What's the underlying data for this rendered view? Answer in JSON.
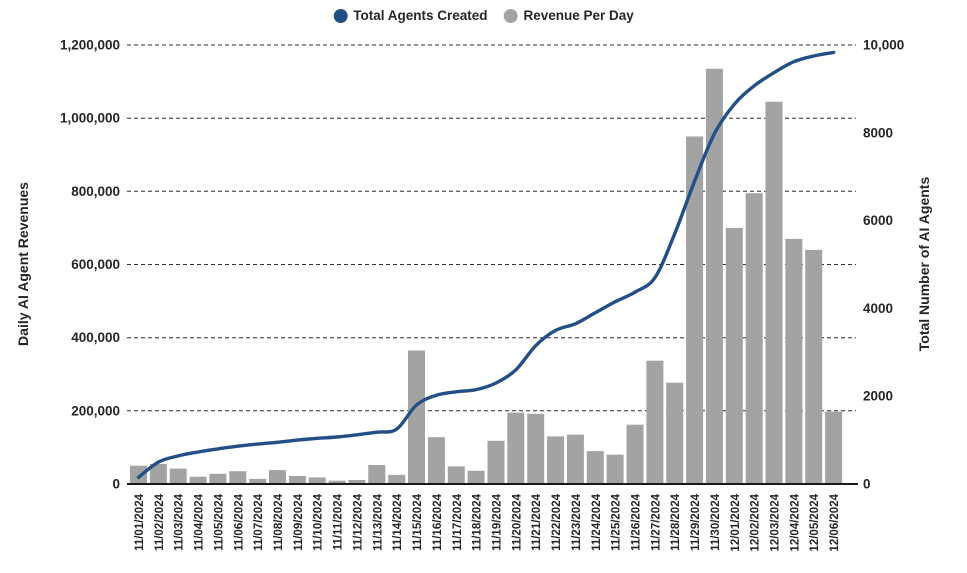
{
  "chart_data": {
    "type": "combo-bar-line",
    "title": "",
    "categories": [
      "11/01/2024",
      "11/02/2024",
      "11/03/2024",
      "11/04/2024",
      "11/05/2024",
      "11/06/2024",
      "11/07/2024",
      "11/08/2024",
      "11/09/2024",
      "11/10/2024",
      "11/11/2024",
      "11/12/2024",
      "11/13/2024",
      "11/14/2024",
      "11/15/2024",
      "11/16/2024",
      "11/17/2024",
      "11/18/2024",
      "11/19/2024",
      "11/20/2024",
      "11/21/2024",
      "11/22/2024",
      "11/23/2024",
      "11/24/2024",
      "11/25/2024",
      "11/26/2024",
      "11/27/2024",
      "11/28/2024",
      "11/29/2024",
      "11/30/2024",
      "12/01/2024",
      "12/02/2024",
      "12/03/2024",
      "12/04/2024",
      "12/05/2024",
      "12/06/2024"
    ],
    "series": [
      {
        "name": "Revenue Per Day",
        "type": "bar",
        "axis": "left",
        "color": "#a3a3a3",
        "values": [
          50000,
          55000,
          42000,
          20000,
          28000,
          35000,
          14000,
          38000,
          22000,
          18000,
          9000,
          11000,
          52000,
          25000,
          365000,
          128000,
          48000,
          36000,
          118000,
          195000,
          192000,
          130000,
          135000,
          90000,
          80000,
          162000,
          337000,
          277000,
          950000,
          1135000,
          700000,
          795000,
          1045000,
          670000,
          640000,
          198000
        ]
      },
      {
        "name": "Total Agents Created",
        "type": "line",
        "axis": "right",
        "color": "#234f87",
        "values": [
          150,
          500,
          640,
          730,
          800,
          860,
          910,
          950,
          1000,
          1040,
          1070,
          1120,
          1180,
          1250,
          1800,
          2020,
          2100,
          2150,
          2300,
          2600,
          3150,
          3500,
          3650,
          3900,
          4150,
          4370,
          4700,
          5700,
          6900,
          7980,
          8650,
          9070,
          9370,
          9620,
          9750,
          9830
        ]
      }
    ],
    "left_axis": {
      "title": "Daily AI Agent Revenues",
      "min": 0,
      "max": 1200000,
      "tick_values": [
        0,
        200000,
        400000,
        600000,
        800000,
        1000000,
        1200000
      ],
      "tick_labels": [
        "0",
        "200,000",
        "400,000",
        "600,000",
        "800,000",
        "1,000,000",
        "1,200,000"
      ]
    },
    "right_axis": {
      "title": "Total Number of AI Agents",
      "min": 0,
      "max": 10000,
      "tick_values": [
        0,
        2000,
        4000,
        6000,
        8000,
        10000
      ],
      "tick_labels": [
        "0",
        "2000",
        "4000",
        "6000",
        "8000",
        "10,000"
      ]
    },
    "legend": {
      "position": "top-center",
      "items": [
        {
          "label": "Total Agents Created",
          "color": "#234f87"
        },
        {
          "label": "Revenue Per Day",
          "color": "#a3a3a3"
        }
      ]
    },
    "grid": {
      "show": true,
      "style": "dashed",
      "color": "#2e2e2e"
    },
    "colors": {
      "background": "#ffffff",
      "text": "#262626",
      "axis_line": "#1a1a1a"
    }
  }
}
